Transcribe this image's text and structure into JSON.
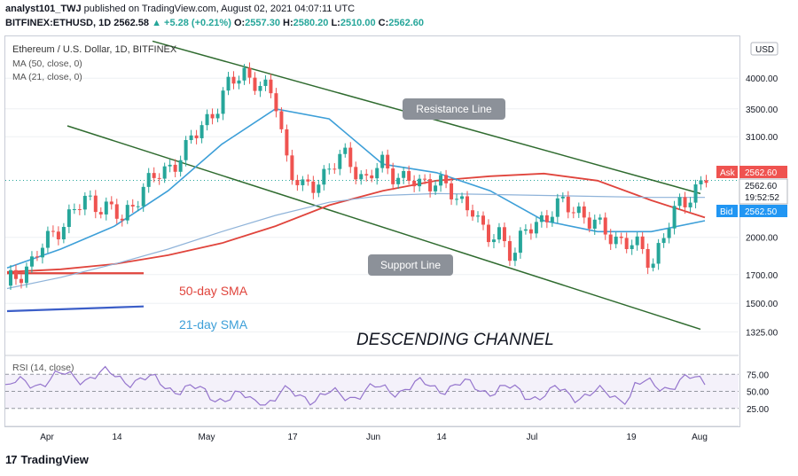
{
  "header": {
    "author": "analyst101_TWJ",
    "published_text": "published on TradingView.com, August 02, 2021 04:07:11 UTC",
    "symbol": "BITFINEX:ETHUSD, 1D",
    "last": "2562.58",
    "change": "+5.28 (+0.21%)",
    "ohlc_O": "2557.30",
    "ohlc_H": "2580.20",
    "ohlc_L": "2510.00",
    "ohlc_C": "2562.60",
    "labels": {
      "o": "O:",
      "h": "H:",
      "l": "L:",
      "c": "C:"
    }
  },
  "legend": {
    "title": "Ethereum / U.S. Dollar, 1D, BITFINEX",
    "ma50": "MA (50, close, 0)",
    "ma21": "MA (21, close, 0)",
    "rsi": "RSI (14, close)"
  },
  "footer": {
    "brand": "TradingView",
    "logo_text": "17"
  },
  "colors": {
    "up": "#26a69a",
    "down": "#ef5350",
    "ma50": "#e0443c",
    "ma21": "#3d9fd8",
    "ma_long": "#8fb3d9",
    "channel": "#2f6b2f",
    "rsi": "#9575cd",
    "ask": "#ef5350",
    "bid": "#2196f3",
    "annotation_bg": "#8c9199"
  },
  "chart_data": {
    "type": "line",
    "title": "Ethereum / U.S. Dollar, 1D, BITFINEX",
    "scale": "log",
    "currency": "USD",
    "y_ticks": [
      4000,
      3500,
      3100,
      2562.6,
      2000,
      1700,
      1500,
      1325
    ],
    "y_tick_labels": [
      "4000.00",
      "3500.00",
      "3100.00",
      "2562.60",
      "2000.00",
      "1700.00",
      "1500.00",
      "1325.00"
    ],
    "x_tick_labels": [
      "Apr",
      "14",
      "May",
      "17",
      "Jun",
      "14",
      "Jul",
      "19",
      "Aug"
    ],
    "ask": {
      "label": "Ask",
      "value": "2562.60"
    },
    "price_box": {
      "value": "2562.60",
      "timer": "19:52:52"
    },
    "bid": {
      "label": "Bid",
      "value": "2562.50"
    },
    "annotations": {
      "resistance": "Resistance Line",
      "support": "Support Line",
      "sma50": "50-day SMA",
      "sma21": "21-day SMA",
      "channel": "DESCENDING CHANNEL"
    },
    "series": [
      {
        "name": "MA (50, close, 0)",
        "values_approx": [
          1720,
          1740,
          1780,
          1850,
          1950,
          2100,
          2300,
          2450,
          2560,
          2610,
          2640,
          2560,
          2350,
          2180
        ]
      },
      {
        "name": "MA (21, close, 0)",
        "values_approx": [
          1750,
          1900,
          2100,
          2450,
          3000,
          3500,
          3350,
          2750,
          2650,
          2450,
          2150,
          2050,
          2050,
          2150
        ]
      }
    ],
    "close_approx": [
      1620,
      1830,
      2100,
      2350,
      2700,
      3450,
      4150,
      3800,
      2700,
      2650,
      2400,
      1950,
      2300,
      2250,
      1950,
      2600
    ],
    "rsi": {
      "name": "RSI (14, close)",
      "levels": [
        75,
        50,
        25
      ],
      "level_labels": [
        "75.00",
        "50.00",
        "25.00"
      ],
      "last": 70
    }
  }
}
